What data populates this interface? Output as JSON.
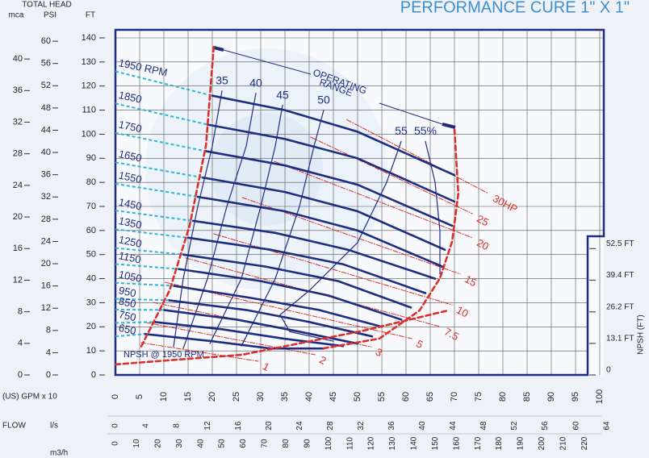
{
  "chart_data": {
    "type": "line",
    "title": "PERFORMANCE CURE 1\" X 1\"",
    "y_axis_title": "TOTAL HEAD",
    "y_label": "FT",
    "x_axis_title": "(US) GPM x 10",
    "flow_label": "FLOW",
    "xlim": [
      0,
      100
    ],
    "xticks": [
      0,
      5,
      10,
      15,
      20,
      25,
      30,
      35,
      40,
      45,
      50,
      55,
      60,
      65,
      70,
      75,
      80,
      85,
      90,
      95,
      100
    ],
    "ylim": [
      0,
      140
    ],
    "yticks": [
      0,
      10,
      20,
      30,
      40,
      50,
      60,
      70,
      80,
      90,
      100,
      110,
      120,
      130,
      140
    ],
    "mca": {
      "label": "mca",
      "lim": [
        0,
        42.67
      ],
      "ticks": [
        0,
        4,
        8,
        12,
        16,
        20,
        24,
        28,
        32,
        36,
        40
      ]
    },
    "psi": {
      "label": "PSI",
      "lim": [
        0,
        60.6
      ],
      "ticks": [
        0,
        4,
        8,
        12,
        16,
        20,
        24,
        28,
        32,
        36,
        40,
        44,
        48,
        52,
        56,
        60
      ]
    },
    "ls": {
      "label": "l/s",
      "lim": [
        0,
        63.09
      ],
      "ticks": [
        0,
        4,
        8,
        12,
        16,
        20,
        24,
        28,
        32,
        36,
        40,
        44,
        48,
        52,
        56,
        60,
        64
      ]
    },
    "m3h": {
      "label": "m3/h",
      "lim": [
        0,
        227.1
      ],
      "ticks": [
        0,
        10,
        20,
        30,
        40,
        50,
        60,
        70,
        80,
        90,
        100,
        110,
        120,
        130,
        140,
        150,
        160,
        170,
        180,
        190,
        200,
        210,
        220
      ]
    },
    "npsh": {
      "label": "NPSH (FT)",
      "ticks": [
        0,
        {
          "value": 13.1,
          "label": "13.1 FT"
        },
        {
          "value": 26.2,
          "label": "26.2 FT"
        },
        {
          "value": 39.4,
          "label": "39.4 FT"
        },
        {
          "value": 52.5,
          "label": "52.5 FT"
        }
      ]
    },
    "operating_range": [
      "OPERATING",
      "RANGE"
    ],
    "rpm_color": "#1f2d80",
    "series": [
      {
        "name": "1950 RPM",
        "x": [
          20,
          35,
          50,
          70
        ],
        "values": [
          116,
          110,
          101,
          83
        ]
      },
      {
        "name": "1850",
        "x": [
          19,
          35,
          50,
          70
        ],
        "values": [
          104,
          98,
          90,
          72
        ]
      },
      {
        "name": "1750",
        "x": [
          18.5,
          35,
          50,
          69.5
        ],
        "values": [
          93,
          87,
          79,
          62
        ]
      },
      {
        "name": "1650",
        "x": [
          18,
          35,
          50,
          68
        ],
        "values": [
          82,
          76,
          68,
          52
        ]
      },
      {
        "name": "1550",
        "x": [
          17,
          35,
          50,
          67.5
        ],
        "values": [
          74,
          68,
          60,
          45
        ]
      },
      {
        "name": "1450",
        "x": [
          16,
          33,
          48,
          66
        ],
        "values": [
          64,
          59,
          52,
          40
        ]
      },
      {
        "name": "1350",
        "x": [
          15,
          32,
          47,
          64
        ],
        "values": [
          57,
          52,
          46,
          34
        ]
      },
      {
        "name": "1250",
        "x": [
          14,
          31,
          46,
          61
        ],
        "values": [
          50,
          45,
          39,
          28
        ]
      },
      {
        "name": "1150",
        "x": [
          13,
          30,
          44,
          59
        ],
        "values": [
          44,
          39,
          33,
          23
        ]
      },
      {
        "name": "1050",
        "x": [
          12,
          28,
          42,
          55
        ],
        "values": [
          37,
          32,
          27,
          20
        ]
      },
      {
        "name": "950",
        "x": [
          11,
          27,
          40,
          53
        ],
        "values": [
          31,
          27,
          22,
          16
        ]
      },
      {
        "name": "850",
        "x": [
          10,
          25,
          38,
          50
        ],
        "values": [
          27,
          23,
          18,
          13
        ]
      },
      {
        "name": "750",
        "x": [
          8,
          22,
          35,
          47
        ],
        "values": [
          22,
          19,
          15,
          12
        ]
      },
      {
        "name": "650",
        "x": [
          6,
          20,
          32,
          43
        ],
        "values": [
          17,
          14,
          11,
          11
        ]
      }
    ],
    "efficiency_color": "#1f2d80",
    "efficiency": [
      {
        "name": "35",
        "x": [
          12,
          14,
          17,
          20,
          22
        ],
        "values": [
          11.7,
          40,
          70,
          95,
          118
        ]
      },
      {
        "name": "40",
        "x": [
          14,
          19,
          23,
          27,
          29
        ],
        "values": [
          11,
          40,
          70,
          95,
          117
        ]
      },
      {
        "name": "45",
        "x": [
          19.5,
          26,
          30,
          33,
          34.5
        ],
        "values": [
          13,
          40,
          70,
          95,
          112
        ]
      },
      {
        "name": "50",
        "x": [
          26,
          33,
          38,
          41,
          43
        ],
        "values": [
          12,
          40,
          70,
          95,
          110
        ]
      },
      {
        "name": "55",
        "x": [
          45,
          36,
          34,
          40,
          50,
          56,
          59
        ],
        "values": [
          14,
          18,
          25,
          35,
          55,
          80,
          97
        ]
      },
      {
        "name": "55%",
        "x": [
          64,
          66,
          67,
          67
        ],
        "values": [
          97,
          80,
          60,
          42
        ]
      }
    ],
    "power_color": "#d9302a",
    "power": [
      {
        "name": "30HP",
        "x": [
          47.8,
          77
        ],
        "values": [
          106,
          75.4
        ]
      },
      {
        "name": "25",
        "x": [
          40.3,
          73.7
        ],
        "values": [
          98.8,
          67
        ]
      },
      {
        "name": "20",
        "x": [
          32.8,
          73.7
        ],
        "values": [
          88.7,
          57
        ]
      },
      {
        "name": "15",
        "x": [
          26.2,
          71.2
        ],
        "values": [
          73.7,
          41.9
        ]
      },
      {
        "name": "10",
        "x": [
          20.3,
          69.5
        ],
        "values": [
          58.6,
          29.1
        ]
      },
      {
        "name": "7.5",
        "x": [
          14.5,
          67
        ],
        "values": [
          48.6,
          20.1
        ]
      },
      {
        "name": "5",
        "x": [
          10.3,
          61.2
        ],
        "values": [
          38.5,
          15.1
        ]
      },
      {
        "name": "3",
        "x": [
          7.8,
          52.8
        ],
        "values": [
          30.1,
          11.7
        ]
      },
      {
        "name": "2",
        "x": [
          6.2,
          41.2
        ],
        "values": [
          21.8,
          8.4
        ]
      },
      {
        "name": "1",
        "x": [
          5.3,
          29.5
        ],
        "values": [
          13.4,
          5.7
        ]
      }
    ],
    "boundary_color": "#d9302a",
    "boundaries": [
      {
        "x": [
          20.3,
          18.7,
          15.3,
          11.2,
          5.3
        ],
        "values": [
          136.3,
          95.4,
          61.9,
          35.2,
          11.7
        ]
      },
      {
        "x": [
          70,
          70.8,
          69.5,
          67,
          62.8,
          54.5,
          42.8
        ],
        "values": [
          102,
          75.4,
          55.3,
          40.2,
          26.8,
          15.1,
          11
        ]
      },
      {
        "name": "NPSH @ 1950 RPM",
        "x": [
          0,
          26.2,
          51.2,
          68.7
        ],
        "values": [
          4.4,
          8.4,
          18.4,
          26.8
        ]
      }
    ],
    "leader_color": "#29b6d8"
  }
}
